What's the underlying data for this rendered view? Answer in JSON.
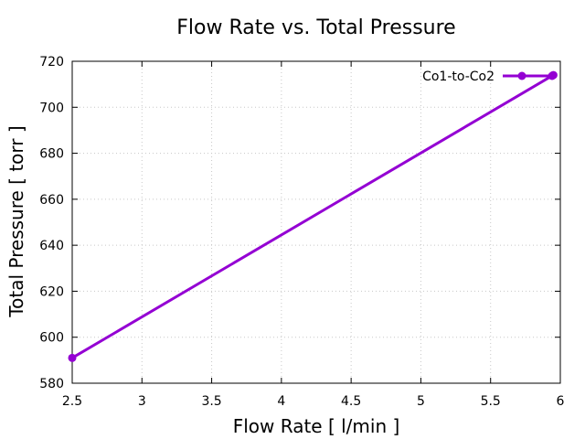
{
  "chart_data": {
    "type": "line",
    "title": "Flow Rate vs. Total Pressure",
    "xlabel": "Flow Rate [ l/min ]",
    "ylabel": "Total Pressure [ torr ]",
    "xlim": [
      2.5,
      6
    ],
    "ylim": [
      580,
      720
    ],
    "xticks": [
      2.5,
      3,
      3.5,
      4,
      4.5,
      5,
      5.5,
      6
    ],
    "xtick_labels": [
      "2.5",
      "3",
      "3.5",
      "4",
      "4.5",
      "5",
      "5.5",
      "6"
    ],
    "yticks": [
      580,
      600,
      620,
      640,
      660,
      680,
      700,
      720
    ],
    "ytick_labels": [
      "580",
      "600",
      "620",
      "640",
      "660",
      "680",
      "700",
      "720"
    ],
    "grid": true,
    "legend_position": "top-right",
    "series": [
      {
        "name": "Co1-to-Co2",
        "color": "#9400d3",
        "x": [
          2.5,
          5.95
        ],
        "y": [
          591,
          714
        ]
      }
    ]
  }
}
